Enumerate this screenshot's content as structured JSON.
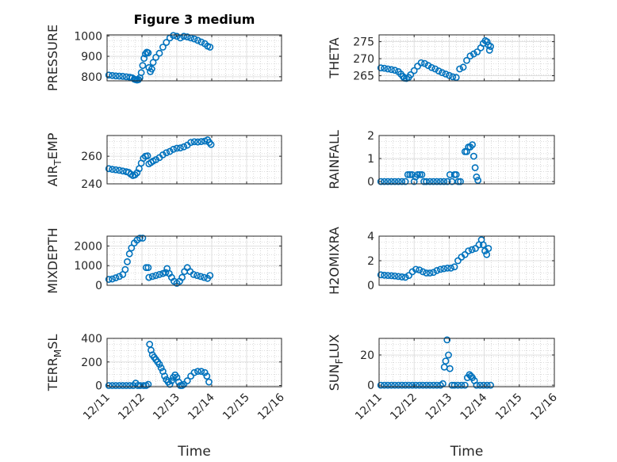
{
  "figure": {
    "title": "Figure 3 medium"
  },
  "chart_data": [
    {
      "type": "scatter",
      "ylabel": "PRESSURE",
      "xlabel": "",
      "xlim": [
        0,
        5
      ],
      "ylim": [
        780,
        1005
      ],
      "yticks": [
        800,
        900,
        1000
      ],
      "xticks": [
        0,
        1,
        2,
        3,
        4,
        5
      ],
      "xticklabels": [
        "12/11",
        "12/12",
        "12/13",
        "12/14",
        "12/15",
        "12/16"
      ],
      "points": [
        [
          0.05,
          808
        ],
        [
          0.15,
          806
        ],
        [
          0.25,
          804
        ],
        [
          0.35,
          803
        ],
        [
          0.45,
          802
        ],
        [
          0.55,
          800
        ],
        [
          0.65,
          798
        ],
        [
          0.72,
          795
        ],
        [
          0.78,
          788
        ],
        [
          0.82,
          786
        ],
        [
          0.86,
          784
        ],
        [
          0.9,
          786
        ],
        [
          0.94,
          795
        ],
        [
          0.98,
          820
        ],
        [
          1.02,
          855
        ],
        [
          1.06,
          890
        ],
        [
          1.1,
          912
        ],
        [
          1.14,
          920
        ],
        [
          1.18,
          917
        ],
        [
          1.2,
          845
        ],
        [
          1.24,
          825
        ],
        [
          1.28,
          838
        ],
        [
          1.32,
          870
        ],
        [
          1.4,
          895
        ],
        [
          1.5,
          915
        ],
        [
          1.6,
          945
        ],
        [
          1.7,
          968
        ],
        [
          1.8,
          990
        ],
        [
          1.9,
          1002
        ],
        [
          2.0,
          998
        ],
        [
          2.1,
          990
        ],
        [
          2.2,
          998
        ],
        [
          2.3,
          995
        ],
        [
          2.4,
          990
        ],
        [
          2.5,
          985
        ],
        [
          2.6,
          978
        ],
        [
          2.7,
          970
        ],
        [
          2.8,
          962
        ],
        [
          2.88,
          950
        ],
        [
          2.95,
          945
        ]
      ]
    },
    {
      "type": "scatter",
      "ylabel": "THETA",
      "xlabel": "",
      "xlim": [
        0,
        5
      ],
      "ylim": [
        263.5,
        277
      ],
      "yticks": [
        265,
        270,
        275
      ],
      "xticks": [
        0,
        1,
        2,
        3,
        4,
        5
      ],
      "xticklabels": [
        "12/11",
        "12/12",
        "12/13",
        "12/14",
        "12/15",
        "12/16"
      ],
      "points": [
        [
          0.05,
          267.3
        ],
        [
          0.15,
          267.2
        ],
        [
          0.25,
          267.0
        ],
        [
          0.35,
          266.8
        ],
        [
          0.45,
          266.6
        ],
        [
          0.55,
          266.2
        ],
        [
          0.62,
          265.5
        ],
        [
          0.68,
          264.8
        ],
        [
          0.72,
          264.3
        ],
        [
          0.78,
          264.2
        ],
        [
          0.84,
          264.5
        ],
        [
          0.9,
          265.3
        ],
        [
          1.0,
          266.5
        ],
        [
          1.1,
          267.8
        ],
        [
          1.2,
          268.8
        ],
        [
          1.3,
          268.6
        ],
        [
          1.4,
          268.0
        ],
        [
          1.5,
          267.4
        ],
        [
          1.6,
          267.0
        ],
        [
          1.7,
          266.4
        ],
        [
          1.8,
          265.9
        ],
        [
          1.9,
          265.5
        ],
        [
          2.0,
          265.1
        ],
        [
          2.1,
          264.7
        ],
        [
          2.2,
          264.5
        ],
        [
          2.3,
          267.0
        ],
        [
          2.4,
          267.5
        ],
        [
          2.5,
          269.5
        ],
        [
          2.6,
          270.8
        ],
        [
          2.7,
          271.4
        ],
        [
          2.8,
          272.0
        ],
        [
          2.9,
          273.2
        ],
        [
          2.97,
          274.5
        ],
        [
          3.03,
          275.3
        ],
        [
          3.08,
          275.0
        ],
        [
          3.12,
          274.0
        ],
        [
          3.15,
          272.5
        ],
        [
          3.18,
          273.6
        ]
      ]
    },
    {
      "type": "scatter",
      "ylabel": "AIR_TEMP",
      "xlabel": "",
      "xlim": [
        0,
        5
      ],
      "ylim": [
        240,
        275
      ],
      "yticks": [
        240,
        260
      ],
      "xticks": [
        0,
        1,
        2,
        3,
        4,
        5
      ],
      "xticklabels": [
        "12/11",
        "12/12",
        "12/13",
        "12/14",
        "12/15",
        "12/16"
      ],
      "points": [
        [
          0.05,
          251
        ],
        [
          0.15,
          250.5
        ],
        [
          0.25,
          250.2
        ],
        [
          0.35,
          249.8
        ],
        [
          0.45,
          249.3
        ],
        [
          0.55,
          248.8
        ],
        [
          0.62,
          248.3
        ],
        [
          0.68,
          247.0
        ],
        [
          0.74,
          246.0
        ],
        [
          0.8,
          246.5
        ],
        [
          0.86,
          248.0
        ],
        [
          0.92,
          251.0
        ],
        [
          0.98,
          255.0
        ],
        [
          1.04,
          258.5
        ],
        [
          1.1,
          260.0
        ],
        [
          1.16,
          260.3
        ],
        [
          1.2,
          254.5
        ],
        [
          1.26,
          255.5
        ],
        [
          1.32,
          256.5
        ],
        [
          1.4,
          257.5
        ],
        [
          1.5,
          259.0
        ],
        [
          1.6,
          261.0
        ],
        [
          1.7,
          262.5
        ],
        [
          1.8,
          263.5
        ],
        [
          1.9,
          265.0
        ],
        [
          2.0,
          265.8
        ],
        [
          2.1,
          266.0
        ],
        [
          2.2,
          266.8
        ],
        [
          2.3,
          268.0
        ],
        [
          2.4,
          270.0
        ],
        [
          2.5,
          270.5
        ],
        [
          2.6,
          270.3
        ],
        [
          2.7,
          270.6
        ],
        [
          2.8,
          271.0
        ],
        [
          2.88,
          271.8
        ],
        [
          2.93,
          270.0
        ],
        [
          2.98,
          268.5
        ]
      ]
    },
    {
      "type": "scatter",
      "ylabel": "RAINFALL",
      "xlabel": "",
      "xlim": [
        0,
        5
      ],
      "ylim": [
        -0.1,
        2
      ],
      "yticks": [
        0,
        1,
        2
      ],
      "xticks": [
        0,
        1,
        2,
        3,
        4,
        5
      ],
      "xticklabels": [
        "12/11",
        "12/12",
        "12/13",
        "12/14",
        "12/15",
        "12/16"
      ],
      "points": [
        [
          0.05,
          0
        ],
        [
          0.15,
          0
        ],
        [
          0.25,
          0
        ],
        [
          0.35,
          0
        ],
        [
          0.45,
          0
        ],
        [
          0.55,
          0
        ],
        [
          0.65,
          0
        ],
        [
          0.75,
          0
        ],
        [
          0.82,
          0.3
        ],
        [
          0.88,
          0.3
        ],
        [
          0.94,
          0.3
        ],
        [
          1.0,
          0
        ],
        [
          1.04,
          0.2
        ],
        [
          1.1,
          0.3
        ],
        [
          1.16,
          0.3
        ],
        [
          1.22,
          0.3
        ],
        [
          1.28,
          0
        ],
        [
          1.35,
          0
        ],
        [
          1.45,
          0
        ],
        [
          1.55,
          0
        ],
        [
          1.65,
          0
        ],
        [
          1.75,
          0
        ],
        [
          1.85,
          0
        ],
        [
          1.95,
          0
        ],
        [
          2.02,
          0.3
        ],
        [
          2.08,
          0
        ],
        [
          2.15,
          0.3
        ],
        [
          2.2,
          0.3
        ],
        [
          2.26,
          0
        ],
        [
          2.32,
          0
        ],
        [
          2.45,
          1.3
        ],
        [
          2.5,
          1.3
        ],
        [
          2.55,
          1.5
        ],
        [
          2.6,
          1.5
        ],
        [
          2.66,
          1.6
        ],
        [
          2.7,
          1.1
        ],
        [
          2.74,
          0.6
        ],
        [
          2.78,
          0.2
        ],
        [
          2.82,
          0.05
        ]
      ]
    },
    {
      "type": "scatter",
      "ylabel": "MIXDEPTH",
      "xlabel": "",
      "xlim": [
        0,
        5
      ],
      "ylim": [
        0,
        2500
      ],
      "yticks": [
        0,
        1000,
        2000
      ],
      "xticks": [
        0,
        1,
        2,
        3,
        4,
        5
      ],
      "xticklabels": [
        "12/11",
        "12/12",
        "12/13",
        "12/14",
        "12/15",
        "12/16"
      ],
      "points": [
        [
          0.05,
          300
        ],
        [
          0.15,
          320
        ],
        [
          0.25,
          380
        ],
        [
          0.35,
          450
        ],
        [
          0.45,
          550
        ],
        [
          0.52,
          800
        ],
        [
          0.58,
          1200
        ],
        [
          0.64,
          1600
        ],
        [
          0.7,
          1900
        ],
        [
          0.78,
          2150
        ],
        [
          0.86,
          2300
        ],
        [
          0.94,
          2400
        ],
        [
          1.02,
          2400
        ],
        [
          1.12,
          900
        ],
        [
          1.18,
          900
        ],
        [
          1.2,
          400
        ],
        [
          1.3,
          450
        ],
        [
          1.4,
          500
        ],
        [
          1.5,
          550
        ],
        [
          1.6,
          600
        ],
        [
          1.68,
          650
        ],
        [
          1.72,
          850
        ],
        [
          1.78,
          600
        ],
        [
          1.85,
          400
        ],
        [
          1.92,
          200
        ],
        [
          2.0,
          100
        ],
        [
          2.08,
          200
        ],
        [
          2.15,
          400
        ],
        [
          2.22,
          700
        ],
        [
          2.3,
          900
        ],
        [
          2.38,
          700
        ],
        [
          2.48,
          550
        ],
        [
          2.58,
          500
        ],
        [
          2.68,
          450
        ],
        [
          2.78,
          400
        ],
        [
          2.88,
          350
        ],
        [
          2.95,
          500
        ]
      ]
    },
    {
      "type": "scatter",
      "ylabel": "H2OMIXRA",
      "xlabel": "",
      "xlim": [
        0,
        5
      ],
      "ylim": [
        0,
        4
      ],
      "yticks": [
        0,
        2,
        4
      ],
      "xticks": [
        0,
        1,
        2,
        3,
        4,
        5
      ],
      "xticklabels": [
        "12/11",
        "12/12",
        "12/13",
        "12/14",
        "12/15",
        "12/16"
      ],
      "points": [
        [
          0.05,
          0.85
        ],
        [
          0.15,
          0.82
        ],
        [
          0.25,
          0.8
        ],
        [
          0.35,
          0.78
        ],
        [
          0.45,
          0.76
        ],
        [
          0.55,
          0.72
        ],
        [
          0.65,
          0.68
        ],
        [
          0.75,
          0.65
        ],
        [
          0.85,
          0.8
        ],
        [
          0.95,
          1.1
        ],
        [
          1.05,
          1.3
        ],
        [
          1.15,
          1.25
        ],
        [
          1.25,
          1.1
        ],
        [
          1.35,
          1.0
        ],
        [
          1.45,
          1.0
        ],
        [
          1.55,
          1.05
        ],
        [
          1.65,
          1.2
        ],
        [
          1.75,
          1.3
        ],
        [
          1.85,
          1.35
        ],
        [
          1.95,
          1.4
        ],
        [
          2.05,
          1.4
        ],
        [
          2.15,
          1.5
        ],
        [
          2.25,
          2.0
        ],
        [
          2.35,
          2.3
        ],
        [
          2.45,
          2.5
        ],
        [
          2.55,
          2.8
        ],
        [
          2.65,
          2.9
        ],
        [
          2.75,
          3.0
        ],
        [
          2.85,
          3.3
        ],
        [
          2.92,
          3.7
        ],
        [
          2.97,
          3.3
        ],
        [
          3.02,
          2.8
        ],
        [
          3.07,
          2.5
        ],
        [
          3.12,
          3.0
        ]
      ]
    },
    {
      "type": "scatter",
      "ylabel": "TERR_MSL",
      "xlabel": "Time",
      "xlim": [
        0,
        5
      ],
      "ylim": [
        -10,
        400
      ],
      "yticks": [
        0,
        200,
        400
      ],
      "xticks": [
        0,
        1,
        2,
        3,
        4,
        5
      ],
      "xticklabels": [
        "12/11",
        "12/12",
        "12/13",
        "12/14",
        "12/15",
        "12/16"
      ],
      "points": [
        [
          0.05,
          0
        ],
        [
          0.15,
          0
        ],
        [
          0.25,
          0
        ],
        [
          0.35,
          0
        ],
        [
          0.45,
          0
        ],
        [
          0.55,
          0
        ],
        [
          0.65,
          0
        ],
        [
          0.75,
          0
        ],
        [
          0.82,
          20
        ],
        [
          0.88,
          0
        ],
        [
          0.95,
          0
        ],
        [
          1.05,
          0
        ],
        [
          1.12,
          0
        ],
        [
          1.18,
          10
        ],
        [
          1.22,
          350
        ],
        [
          1.26,
          300
        ],
        [
          1.3,
          260
        ],
        [
          1.35,
          240
        ],
        [
          1.4,
          220
        ],
        [
          1.45,
          200
        ],
        [
          1.5,
          180
        ],
        [
          1.55,
          150
        ],
        [
          1.6,
          120
        ],
        [
          1.65,
          80
        ],
        [
          1.7,
          50
        ],
        [
          1.75,
          30
        ],
        [
          1.8,
          10
        ],
        [
          1.85,
          40
        ],
        [
          1.9,
          70
        ],
        [
          1.95,
          90
        ],
        [
          2.0,
          70
        ],
        [
          2.05,
          30
        ],
        [
          2.1,
          0
        ],
        [
          2.15,
          0
        ],
        [
          2.2,
          10
        ],
        [
          2.3,
          40
        ],
        [
          2.4,
          80
        ],
        [
          2.5,
          110
        ],
        [
          2.6,
          120
        ],
        [
          2.7,
          120
        ],
        [
          2.8,
          110
        ],
        [
          2.86,
          80
        ],
        [
          2.92,
          30
        ]
      ]
    },
    {
      "type": "scatter",
      "ylabel": "SUN_FLUX",
      "xlabel": "Time",
      "xlim": [
        0,
        5
      ],
      "ylim": [
        -1,
        31
      ],
      "yticks": [
        0,
        20
      ],
      "xticks": [
        0,
        1,
        2,
        3,
        4,
        5
      ],
      "xticklabels": [
        "12/11",
        "12/12",
        "12/13",
        "12/14",
        "12/15",
        "12/16"
      ],
      "points": [
        [
          0.05,
          0
        ],
        [
          0.15,
          0
        ],
        [
          0.25,
          0
        ],
        [
          0.35,
          0
        ],
        [
          0.45,
          0
        ],
        [
          0.55,
          0
        ],
        [
          0.65,
          0
        ],
        [
          0.75,
          0
        ],
        [
          0.85,
          0
        ],
        [
          0.95,
          0
        ],
        [
          1.05,
          0
        ],
        [
          1.15,
          0
        ],
        [
          1.25,
          0
        ],
        [
          1.35,
          0
        ],
        [
          1.45,
          0
        ],
        [
          1.55,
          0
        ],
        [
          1.65,
          0
        ],
        [
          1.75,
          0
        ],
        [
          1.82,
          1
        ],
        [
          1.86,
          12
        ],
        [
          1.9,
          16
        ],
        [
          1.94,
          30
        ],
        [
          1.98,
          20
        ],
        [
          2.02,
          11
        ],
        [
          2.08,
          0
        ],
        [
          2.15,
          0
        ],
        [
          2.25,
          0
        ],
        [
          2.35,
          0
        ],
        [
          2.45,
          0
        ],
        [
          2.52,
          5
        ],
        [
          2.58,
          7
        ],
        [
          2.62,
          6
        ],
        [
          2.66,
          5
        ],
        [
          2.72,
          3
        ],
        [
          2.78,
          0
        ],
        [
          2.88,
          0
        ],
        [
          2.98,
          0
        ],
        [
          3.08,
          0
        ],
        [
          3.18,
          0
        ]
      ]
    }
  ]
}
